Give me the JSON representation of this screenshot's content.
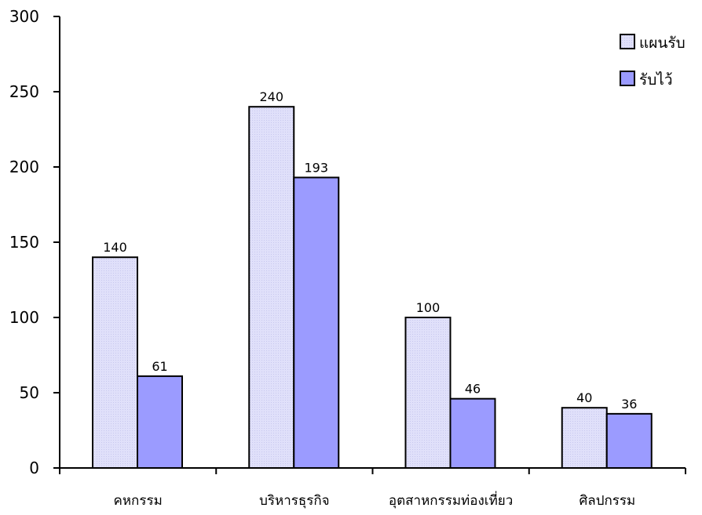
{
  "chart_data": {
    "type": "bar",
    "categories": [
      "คหกรรม",
      "บริหารธุรกิจ",
      "อุตสาหกรรมท่องเที่ยว",
      "ศิลปกรรม"
    ],
    "series": [
      {
        "name": "แผนรับ",
        "values": [
          140,
          240,
          100,
          40
        ],
        "color": "#e0e0fa"
      },
      {
        "name": "รับไว้",
        "values": [
          61,
          193,
          46,
          36
        ],
        "color": "#9b9bff"
      }
    ],
    "ylim": [
      0,
      300
    ],
    "yticks": [
      0,
      50,
      100,
      150,
      200,
      250,
      300
    ],
    "grid": false,
    "legend_position": "top-right"
  }
}
